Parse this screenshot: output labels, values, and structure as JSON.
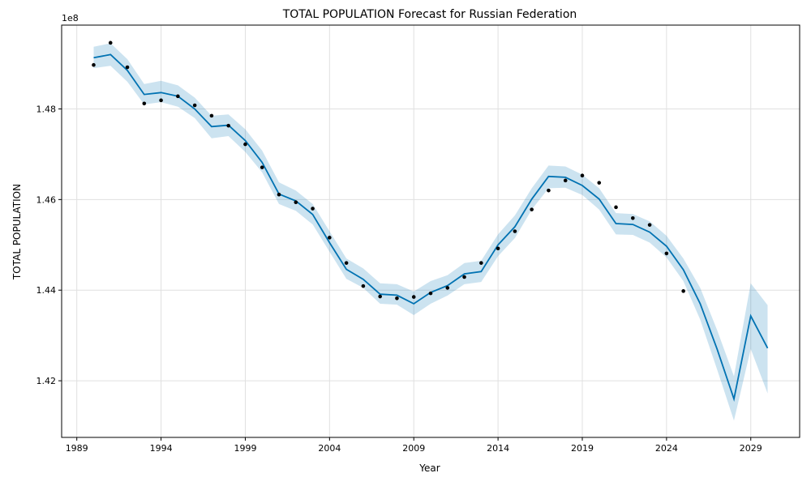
{
  "chart_data": {
    "type": "line",
    "title": "TOTAL POPULATION Forecast for Russian Federation",
    "xlabel": "Year",
    "ylabel": "TOTAL POPULATION",
    "y_offset_label": "1e8",
    "xlim": [
      1988.1,
      2031.9
    ],
    "ylim": [
      1.4075,
      1.4985
    ],
    "x_ticks": [
      1989,
      1994,
      1999,
      2004,
      2009,
      2014,
      2019,
      2024,
      2029
    ],
    "y_ticks": [
      1.42,
      1.44,
      1.46,
      1.48
    ],
    "grid": true,
    "colors": {
      "forecast": "#0072B2",
      "band": "#0072B2",
      "actual": "#000000"
    },
    "actual": {
      "x": [
        1990,
        1991,
        1992,
        1993,
        1994,
        1995,
        1996,
        1997,
        1998,
        1999,
        2000,
        2001,
        2002,
        2003,
        2004,
        2005,
        2006,
        2007,
        2008,
        2009,
        2010,
        2011,
        2012,
        2013,
        2014,
        2015,
        2016,
        2017,
        2018,
        2019,
        2020,
        2021,
        2022,
        2023,
        2024,
        2025
      ],
      "y": [
        1.4897,
        1.4946,
        1.4892,
        1.4812,
        1.4819,
        1.4828,
        1.4808,
        1.4785,
        1.4763,
        1.4722,
        1.4671,
        1.4611,
        1.4594,
        1.458,
        1.4516,
        1.446,
        1.4409,
        1.4386,
        1.4382,
        1.4385,
        1.4393,
        1.4405,
        1.4429,
        1.446,
        1.4492,
        1.453,
        1.4578,
        1.462,
        1.4642,
        1.4653,
        1.4637,
        1.4583,
        1.4559,
        1.4544,
        1.4481,
        1.4398
      ]
    },
    "forecast": {
      "x": [
        1990,
        1991,
        1992,
        1993,
        1994,
        1995,
        1996,
        1997,
        1998,
        1999,
        2000,
        2001,
        2002,
        2003,
        2004,
        2005,
        2006,
        2007,
        2008,
        2009,
        2010,
        2011,
        2012,
        2013,
        2014,
        2015,
        2016,
        2017,
        2018,
        2019,
        2020,
        2021,
        2022,
        2023,
        2024,
        2025,
        2026,
        2027,
        2028,
        2029,
        2030
      ],
      "y": [
        1.4913,
        1.492,
        1.4885,
        1.4832,
        1.4836,
        1.4828,
        1.48,
        1.4761,
        1.4764,
        1.473,
        1.4682,
        1.4612,
        1.4597,
        1.4567,
        1.4505,
        1.4446,
        1.4424,
        1.4391,
        1.4389,
        1.437,
        1.4395,
        1.441,
        1.4436,
        1.4441,
        1.45,
        1.454,
        1.4601,
        1.4651,
        1.4649,
        1.4631,
        1.4601,
        1.4547,
        1.4545,
        1.4528,
        1.4497,
        1.4445,
        1.437,
        1.427,
        1.416,
        1.4343,
        1.4272
      ],
      "lower": [
        1.489,
        1.4895,
        1.486,
        1.481,
        1.4815,
        1.4805,
        1.478,
        1.4735,
        1.474,
        1.4705,
        1.466,
        1.459,
        1.4575,
        1.4545,
        1.4485,
        1.4425,
        1.4405,
        1.437,
        1.4368,
        1.4345,
        1.437,
        1.4388,
        1.4413,
        1.4418,
        1.4475,
        1.4515,
        1.4578,
        1.4625,
        1.4626,
        1.461,
        1.4578,
        1.4523,
        1.4522,
        1.4505,
        1.4472,
        1.442,
        1.4335,
        1.4225,
        1.4112,
        1.427,
        1.4172
      ],
      "upper": [
        1.4937,
        1.4945,
        1.491,
        1.4855,
        1.4862,
        1.4852,
        1.4825,
        1.4785,
        1.4788,
        1.4755,
        1.4708,
        1.4638,
        1.462,
        1.459,
        1.453,
        1.447,
        1.4448,
        1.4415,
        1.4413,
        1.4397,
        1.442,
        1.4433,
        1.446,
        1.4465,
        1.4523,
        1.4565,
        1.4625,
        1.4675,
        1.4673,
        1.4655,
        1.4625,
        1.457,
        1.4568,
        1.4552,
        1.452,
        1.447,
        1.4405,
        1.4312,
        1.421,
        1.4415,
        1.4367
      ]
    }
  }
}
